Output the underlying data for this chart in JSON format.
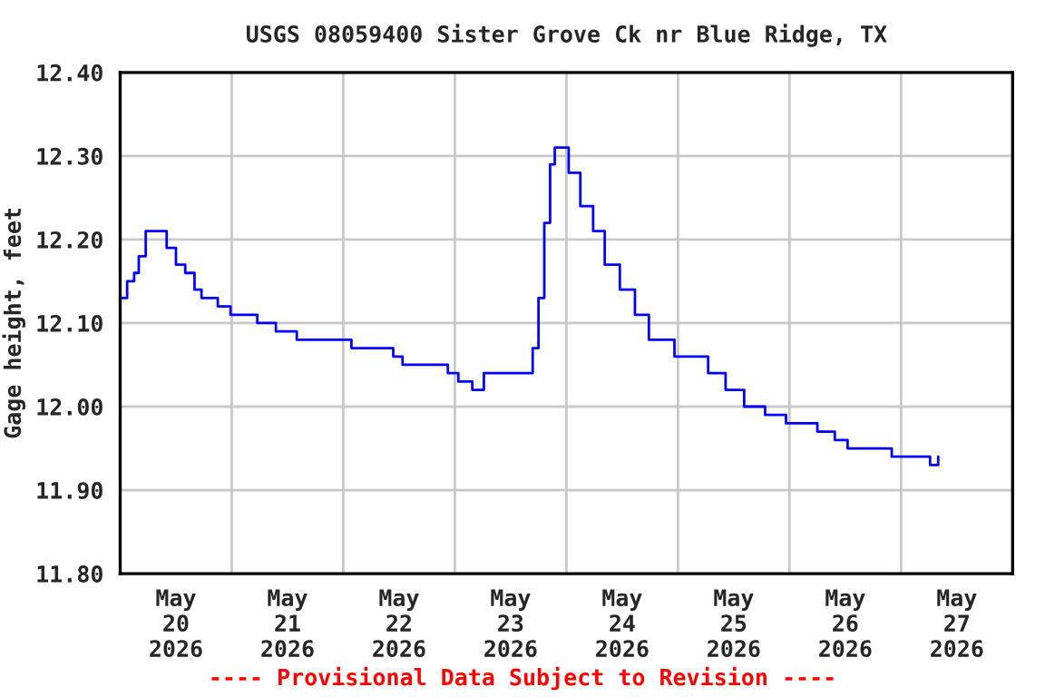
{
  "chart_data": {
    "type": "step",
    "title": "USGS 08059400 Sister Grove Ck nr Blue Ridge, TX",
    "ylabel": "Gage height, feet",
    "annotations": [
      "---- Provisional Data Subject to Revision ----"
    ],
    "series": [
      {
        "color": "#0000ff",
        "x": [
          "2026-05-20T00:00",
          "2026-05-20T01:30",
          "2026-05-20T03:00",
          "2026-05-20T04:00",
          "2026-05-20T05:30",
          "2026-05-20T08:15",
          "2026-05-20T10:00",
          "2026-05-20T12:00",
          "2026-05-20T14:00",
          "2026-05-20T16:00",
          "2026-05-20T17:30",
          "2026-05-20T21:00",
          "2026-05-20T23:45",
          "2026-05-21T05:30",
          "2026-05-21T09:30",
          "2026-05-21T14:00",
          "2026-05-21T21:45",
          "2026-05-22T01:45",
          "2026-05-22T10:00",
          "2026-05-22T10:45",
          "2026-05-22T12:45",
          "2026-05-22T21:45",
          "2026-05-22T22:30",
          "2026-05-23T00:45",
          "2026-05-23T03:45",
          "2026-05-23T06:15",
          "2026-05-23T15:30",
          "2026-05-23T16:45",
          "2026-05-23T18:00",
          "2026-05-23T19:15",
          "2026-05-23T20:30",
          "2026-05-23T21:30",
          "2026-05-23T23:15",
          "2026-05-24T00:30",
          "2026-05-24T03:00",
          "2026-05-24T05:45",
          "2026-05-24T08:15",
          "2026-05-24T11:30",
          "2026-05-24T14:45",
          "2026-05-24T17:45",
          "2026-05-24T23:15",
          "2026-05-25T02:30",
          "2026-05-25T06:30",
          "2026-05-25T10:15",
          "2026-05-25T14:15",
          "2026-05-25T18:45",
          "2026-05-25T23:15",
          "2026-05-26T05:15",
          "2026-05-26T06:00",
          "2026-05-26T09:45",
          "2026-05-26T12:30",
          "2026-05-26T20:45",
          "2026-05-26T22:00",
          "2026-05-27T06:00",
          "2026-05-27T06:15",
          "2026-05-27T08:00"
        ],
        "values": [
          12.13,
          12.15,
          12.16,
          12.18,
          12.21,
          12.21,
          12.19,
          12.17,
          12.16,
          12.14,
          12.13,
          12.12,
          12.11,
          12.1,
          12.09,
          12.08,
          12.08,
          12.07,
          12.07,
          12.06,
          12.05,
          12.05,
          12.04,
          12.03,
          12.02,
          12.04,
          12.04,
          12.07,
          12.13,
          12.22,
          12.29,
          12.31,
          12.31,
          12.28,
          12.24,
          12.21,
          12.17,
          12.14,
          12.11,
          12.08,
          12.06,
          12.06,
          12.04,
          12.02,
          12.0,
          11.99,
          11.98,
          11.98,
          11.97,
          11.96,
          11.95,
          11.95,
          11.94,
          11.94,
          11.93,
          11.94
        ]
      }
    ],
    "xlim": [
      "2026-05-20T00:00",
      "2026-05-28T00:00"
    ],
    "xticks": [
      {
        "value": "2026-05-20T12:00",
        "label": "May\n20\n2026"
      },
      {
        "value": "2026-05-21T12:00",
        "label": "May\n21\n2026"
      },
      {
        "value": "2026-05-22T12:00",
        "label": "May\n22\n2026"
      },
      {
        "value": "2026-05-23T12:00",
        "label": "May\n23\n2026"
      },
      {
        "value": "2026-05-24T12:00",
        "label": "May\n24\n2026"
      },
      {
        "value": "2026-05-25T12:00",
        "label": "May\n25\n2026"
      },
      {
        "value": "2026-05-26T12:00",
        "label": "May\n26\n2026"
      },
      {
        "value": "2026-05-27T12:00",
        "label": "May\n27\n2026"
      },
      {
        "value": "2026-05-21T00:00",
        "label": null
      },
      {
        "value": "2026-05-22T00:00",
        "label": null
      },
      {
        "value": "2026-05-23T00:00",
        "label": null
      },
      {
        "value": "2026-05-24T00:00",
        "label": null
      },
      {
        "value": "2026-05-25T00:00",
        "label": null
      },
      {
        "value": "2026-05-26T00:00",
        "label": null
      },
      {
        "value": "2026-05-27T00:00",
        "label": null
      }
    ],
    "ylim": [
      11.8,
      12.4
    ],
    "yticks": [
      {
        "value": 11.8,
        "label": "11.80"
      },
      {
        "value": 11.9,
        "label": "11.90"
      },
      {
        "value": 12.0,
        "label": "12.00"
      },
      {
        "value": 12.1,
        "label": "12.10"
      },
      {
        "value": 12.2,
        "label": "12.20"
      },
      {
        "value": 12.3,
        "label": "12.30"
      },
      {
        "value": 12.4,
        "label": "12.40"
      }
    ],
    "grid": true,
    "legend": false
  }
}
